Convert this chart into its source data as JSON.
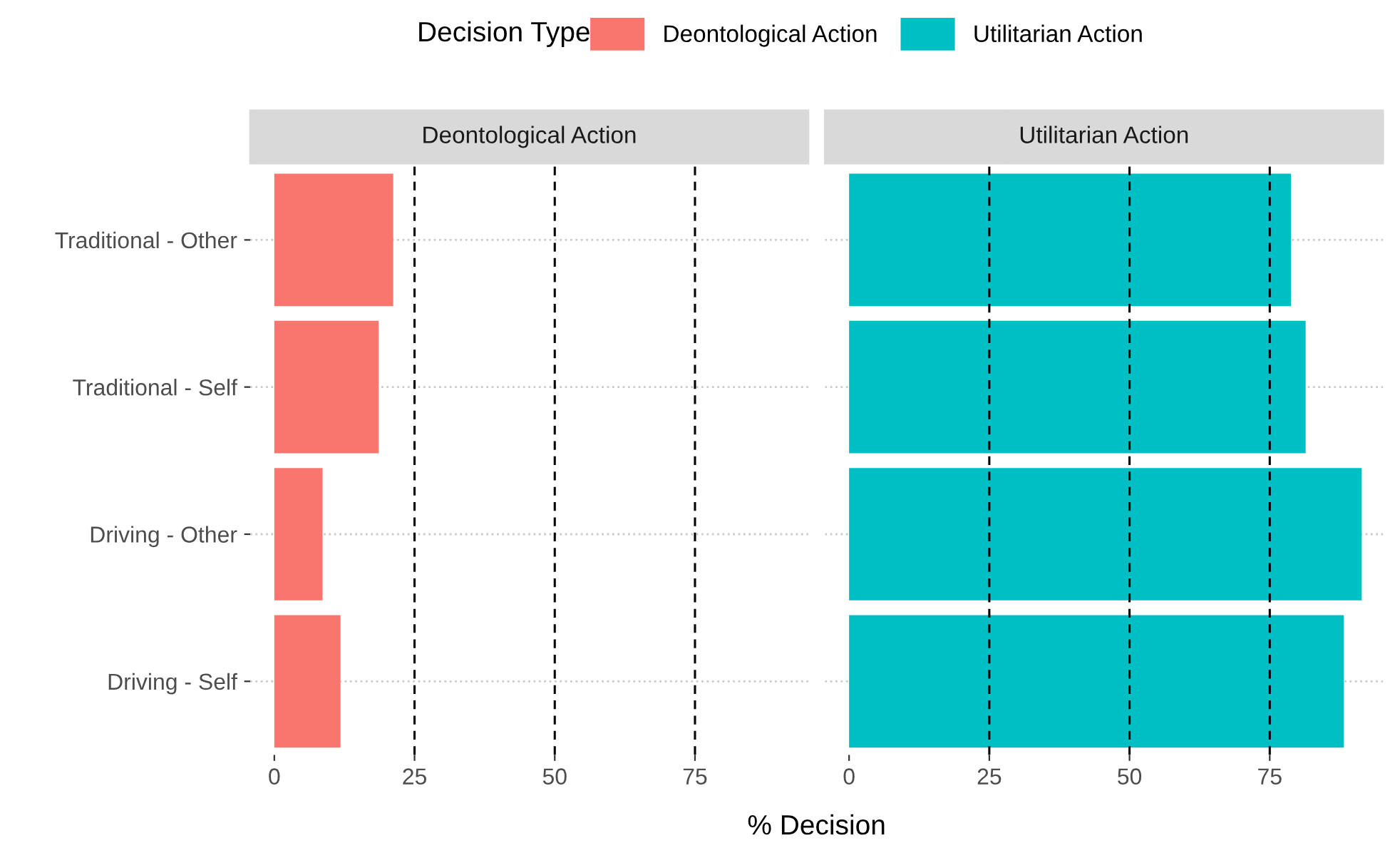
{
  "chart_data": [
    {
      "type": "bar",
      "orientation": "horizontal",
      "title": "Deontological Action",
      "xlabel": "% Decision",
      "legend_title": "Decision Type",
      "legend": "top",
      "categories": [
        "Traditional - Other",
        "Traditional - Self",
        "Driving - Other",
        "Driving - Self"
      ],
      "series": [
        {
          "name": "Deontological Action",
          "color": "#f8766d",
          "values": [
            21.2,
            18.6,
            8.6,
            11.8
          ]
        }
      ],
      "xlim": [
        -4.3,
        95.2
      ],
      "xticks": [
        0,
        25,
        50,
        75
      ],
      "grid": "y",
      "ref_lines": [
        {
          "axis": "x",
          "value": 25,
          "line_style": "dashed"
        },
        {
          "axis": "x",
          "value": 50,
          "line_style": "dashed"
        },
        {
          "axis": "x",
          "value": 75,
          "line_style": "dashed"
        }
      ]
    },
    {
      "type": "bar",
      "orientation": "horizontal",
      "title": "Utilitarian Action",
      "tick_labels": "x",
      "categories": [
        null,
        null,
        null,
        null
      ],
      "series": [
        {
          "name": "Utilitarian Action",
          "color": "#00bfc4",
          "values": [
            78.8,
            81.4,
            91.4,
            88.2
          ]
        }
      ],
      "xlim": [
        -4.3,
        95.2
      ],
      "xticks": [
        0,
        25,
        50,
        75
      ],
      "grid": "y",
      "ref_lines": [
        {
          "axis": "x",
          "value": 25,
          "line_style": "dashed"
        },
        {
          "axis": "x",
          "value": 50,
          "line_style": "dashed"
        },
        {
          "axis": "x",
          "value": 75,
          "line_style": "dashed"
        }
      ]
    }
  ]
}
